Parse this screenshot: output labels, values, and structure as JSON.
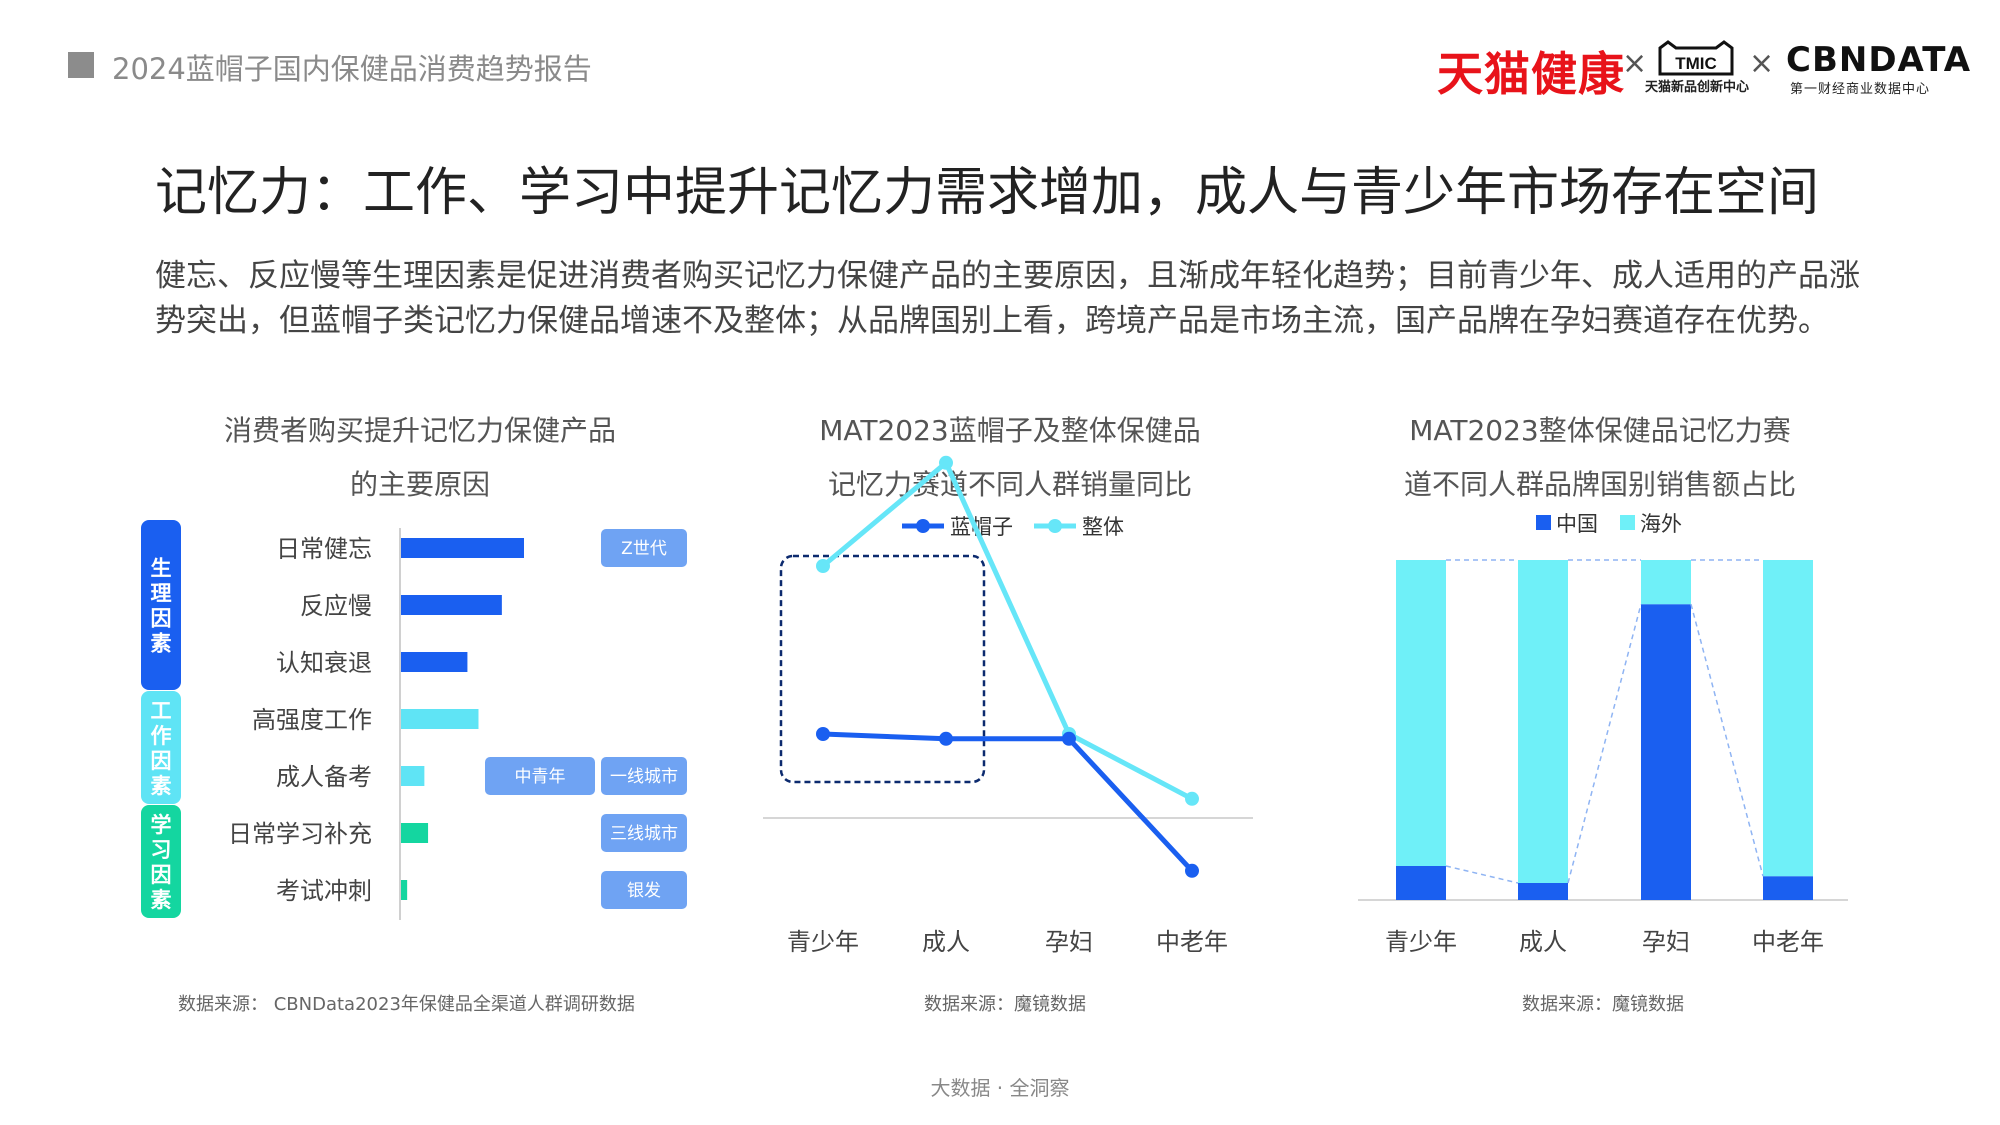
{
  "header": {
    "report_title": "2024蓝帽子国内保健品消费趋势报告",
    "logos": {
      "tmall": "天猫健康",
      "separator": "×",
      "tmic": "TMIC",
      "tmic_sub": "天猫新品创新中心",
      "cbn": "CBNDATA",
      "cbn_sub": "第一财经商业数据中心"
    },
    "colors": {
      "tmall_red": "#e8131a"
    }
  },
  "title": "记忆力：工作、学习中提升记忆力需求增加，成人与青少年市场存在空间",
  "intro": "健忘、反应慢等生理因素是促进消费者购买记忆力保健产品的主要原因，且渐成年轻化趋势；目前青少年、成人适用的产品涨势突出，但蓝帽子类记忆力保健品增速不及整体；从品牌国别上看，跨境产品是市场主流，国产品牌在孕妇赛道存在优势。",
  "chart_data": [
    {
      "type": "bar",
      "orientation": "horizontal",
      "title_lines": [
        "消费者购买提升记忆力保健产品",
        "的主要原因"
      ],
      "categories": [
        "日常健忘",
        "反应慢",
        "认知衰退",
        "高强度工作",
        "成人备考",
        "日常学习补充",
        "考试冲刺"
      ],
      "values": [
        1.0,
        0.82,
        0.54,
        0.63,
        0.19,
        0.22,
        0.05
      ],
      "value_scale": "relative",
      "bar_colors": [
        "#1a5ff0",
        "#1a5ff0",
        "#1a5ff0",
        "#5fe4f5",
        "#5fe4f5",
        "#14d6a0",
        "#14d6a0"
      ],
      "groups": [
        {
          "label": "生理因素",
          "color": "#1a5ff0",
          "rows": [
            0,
            2
          ]
        },
        {
          "label": "工作因素",
          "color": "#5fe4f5",
          "rows": [
            3,
            4
          ]
        },
        {
          "label": "学习因素",
          "color": "#14d6a0",
          "rows": [
            5,
            6
          ]
        }
      ],
      "tags": [
        {
          "row": 0,
          "labels": [
            "Z世代"
          ]
        },
        {
          "row": 4,
          "labels": [
            "中青年",
            "一线城市"
          ]
        },
        {
          "row": 5,
          "labels": [
            "三线城市"
          ]
        },
        {
          "row": 6,
          "labels": [
            "银发"
          ]
        }
      ],
      "tag_color": "#6fa3f3",
      "source": "数据来源：  CBNData2023年保健品全渠道人群调研数据"
    },
    {
      "type": "line",
      "title_lines": [
        "MAT2023蓝帽子及整体保健品",
        "记忆力赛道不同人群销量同比"
      ],
      "categories": [
        "青少年",
        "成人",
        "孕妇",
        "中老年"
      ],
      "series": [
        {
          "name": "蓝帽子",
          "color": "#1a5ff0",
          "values": [
            0.35,
            0.33,
            0.33,
            -0.22
          ]
        },
        {
          "name": "整体",
          "color": "#66e6f8",
          "values": [
            1.05,
            1.48,
            0.35,
            0.08
          ]
        }
      ],
      "baseline": 0,
      "ylim": [
        -0.4,
        1.8
      ],
      "value_scale": "relative",
      "highlight_categories": [
        "青少年",
        "成人"
      ],
      "highlight_color": "#0c2a6e",
      "legend_position": "top",
      "source": "数据来源：魔镜数据"
    },
    {
      "type": "bar",
      "stacked": true,
      "percent": true,
      "title_lines": [
        "MAT2023整体保健品记忆力赛",
        "道不同人群品牌国别销售额占比"
      ],
      "categories": [
        "青少年",
        "成人",
        "孕妇",
        "中老年"
      ],
      "series": [
        {
          "name": "中国",
          "color": "#1a5ff0",
          "values": [
            0.1,
            0.05,
            0.87,
            0.07
          ]
        },
        {
          "name": "海外",
          "color": "#6ff0f8",
          "values": [
            0.9,
            0.95,
            0.13,
            0.93
          ]
        }
      ],
      "ylim": [
        0,
        1
      ],
      "legend_position": "top",
      "source": "数据来源：魔镜数据"
    }
  ],
  "footer": "大数据 · 全洞察"
}
